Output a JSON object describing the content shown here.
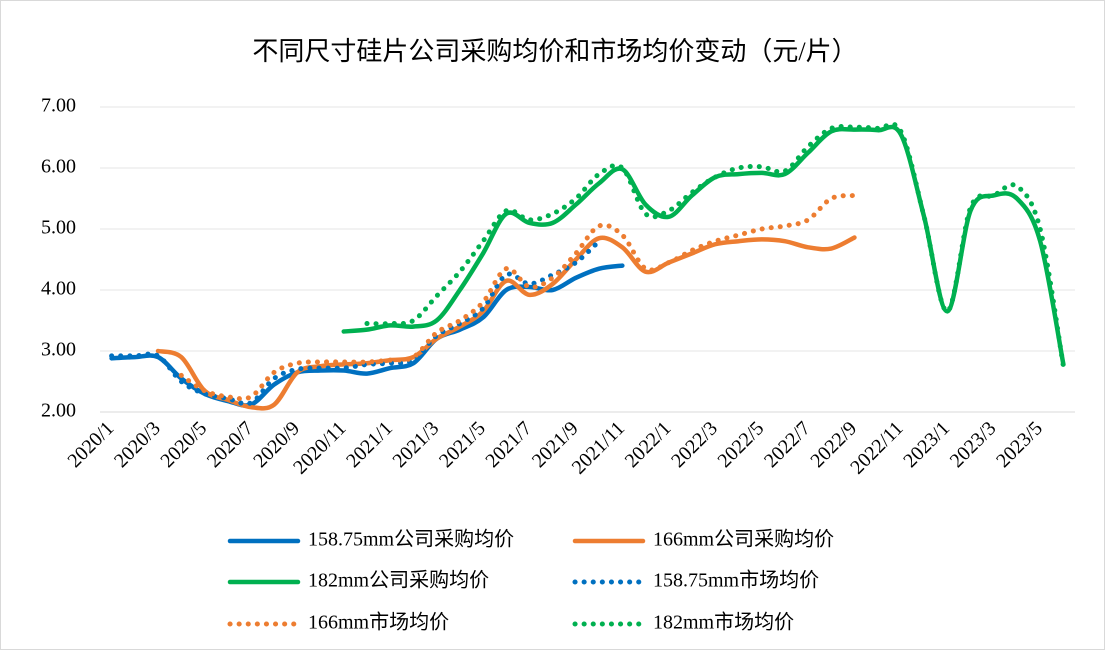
{
  "chart_data": {
    "type": "line",
    "title": "不同尺寸硅片公司采购均价和市场均价变动（元/片）",
    "categories": [
      "2020/1",
      null,
      "2020/3",
      null,
      "2020/5",
      null,
      "2020/7",
      null,
      "2020/9",
      null,
      "2020/11",
      null,
      "2021/1",
      null,
      "2021/3",
      null,
      "2021/5",
      null,
      "2021/7",
      null,
      "2021/9",
      null,
      "2021/11",
      null,
      "2022/1",
      null,
      "2022/3",
      null,
      "2022/5",
      null,
      "2022/7",
      null,
      "2022/9",
      null,
      "2022/11",
      null,
      "2023/1",
      null,
      "2023/3",
      null,
      "2023/5",
      null
    ],
    "series": [
      {
        "name": "158.75mm公司采购均价",
        "color": "#0070c0",
        "style": "solid",
        "values": [
          2.88,
          2.9,
          2.9,
          2.55,
          2.3,
          2.18,
          2.12,
          2.45,
          2.65,
          2.68,
          2.68,
          2.63,
          2.72,
          2.8,
          3.2,
          3.35,
          3.55,
          4.0,
          4.05,
          4.0,
          4.2,
          4.35,
          4.4,
          null,
          null,
          null,
          null,
          null,
          null,
          null,
          null,
          null,
          null,
          null,
          null,
          null,
          null,
          null,
          null,
          null,
          null,
          null
        ]
      },
      {
        "name": "166mm公司采购均价",
        "color": "#ed7d31",
        "style": "solid",
        "values": [
          null,
          null,
          3.0,
          2.9,
          2.35,
          2.2,
          2.08,
          2.12,
          2.65,
          2.75,
          2.78,
          2.8,
          2.85,
          2.9,
          3.2,
          3.4,
          3.65,
          4.15,
          3.92,
          4.1,
          4.5,
          4.85,
          4.7,
          4.3,
          4.45,
          4.6,
          4.75,
          4.8,
          4.83,
          4.8,
          4.7,
          4.68,
          4.86,
          null,
          null,
          null,
          null,
          null,
          null,
          null,
          null,
          null
        ]
      },
      {
        "name": "182mm公司采购均价",
        "color": "#00b050",
        "style": "solid",
        "values": [
          null,
          null,
          null,
          null,
          null,
          null,
          null,
          null,
          null,
          null,
          3.32,
          3.35,
          3.42,
          3.4,
          3.5,
          4.0,
          4.6,
          5.25,
          5.1,
          5.1,
          5.4,
          5.75,
          5.98,
          5.4,
          5.2,
          5.55,
          5.85,
          5.9,
          5.92,
          5.9,
          6.25,
          6.6,
          6.63,
          6.62,
          6.55,
          5.2,
          3.65,
          5.3,
          5.55,
          5.5,
          4.8,
          2.78
        ]
      },
      {
        "name": "158.75mm市场均价",
        "color": "#0070c0",
        "style": "dotted",
        "values": [
          2.92,
          2.92,
          2.92,
          2.5,
          2.3,
          2.22,
          2.15,
          2.55,
          2.7,
          2.72,
          2.72,
          2.78,
          2.8,
          2.85,
          3.25,
          3.45,
          3.7,
          4.25,
          4.1,
          4.25,
          4.45,
          4.8,
          null,
          null,
          null,
          null,
          null,
          null,
          null,
          null,
          null,
          null,
          null,
          null,
          null,
          null,
          null,
          null,
          null,
          null,
          null,
          null
        ]
      },
      {
        "name": "166mm市场均价",
        "color": "#ed7d31",
        "style": "dotted",
        "values": [
          null,
          null,
          null,
          2.6,
          2.35,
          2.25,
          2.25,
          2.65,
          2.8,
          2.82,
          2.82,
          2.82,
          2.85,
          2.9,
          3.3,
          3.5,
          3.8,
          4.35,
          4.05,
          4.2,
          4.6,
          5.05,
          4.9,
          4.35,
          4.45,
          4.65,
          4.8,
          4.9,
          5.0,
          5.05,
          5.15,
          5.5,
          5.55,
          null,
          null,
          null,
          null,
          null,
          null,
          null,
          null,
          null
        ]
      },
      {
        "name": "182mm市场均价",
        "color": "#00b050",
        "style": "dotted",
        "values": [
          null,
          null,
          null,
          null,
          null,
          null,
          null,
          null,
          null,
          null,
          null,
          3.45,
          3.45,
          3.5,
          3.9,
          4.3,
          4.8,
          5.3,
          5.15,
          5.25,
          5.5,
          5.9,
          6.0,
          5.25,
          5.3,
          5.6,
          5.85,
          6.0,
          6.02,
          5.95,
          6.35,
          6.65,
          6.67,
          6.65,
          6.6,
          5.2,
          3.65,
          5.35,
          5.55,
          5.7,
          5.0,
          2.75
        ]
      }
    ],
    "ylim": [
      2,
      7
    ],
    "yticks": [
      {
        "value": 2,
        "label": "2.00"
      },
      {
        "value": 3,
        "label": "3.00"
      },
      {
        "value": 4,
        "label": "4.00"
      },
      {
        "value": 5,
        "label": "5.00"
      },
      {
        "value": 6,
        "label": "6.00"
      },
      {
        "value": 7,
        "label": "7.00"
      }
    ],
    "grid": true,
    "legend": "bottom"
  }
}
